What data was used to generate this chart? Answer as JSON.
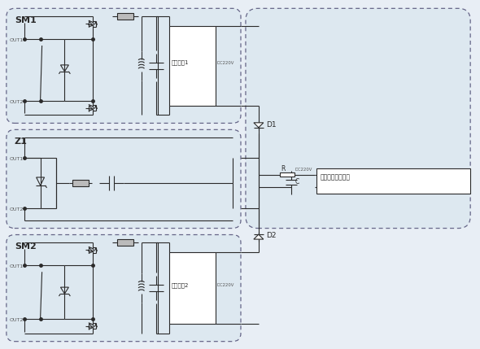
{
  "bg_color": "#e8eef5",
  "line_color": "#2a2a2a",
  "box_fill": "#dde8f0",
  "white": "#ffffff",
  "sm1_label": "SM1",
  "sm2_label": "SM2",
  "z1_label": "Z1",
  "hv1_label": "高压电源1",
  "hv2_label": "高压电源2",
  "damping_label": "阻尼模块控制回路",
  "dc220v": "DC220V",
  "fig_width": 5.9,
  "fig_height": 4.29,
  "dpi": 100
}
